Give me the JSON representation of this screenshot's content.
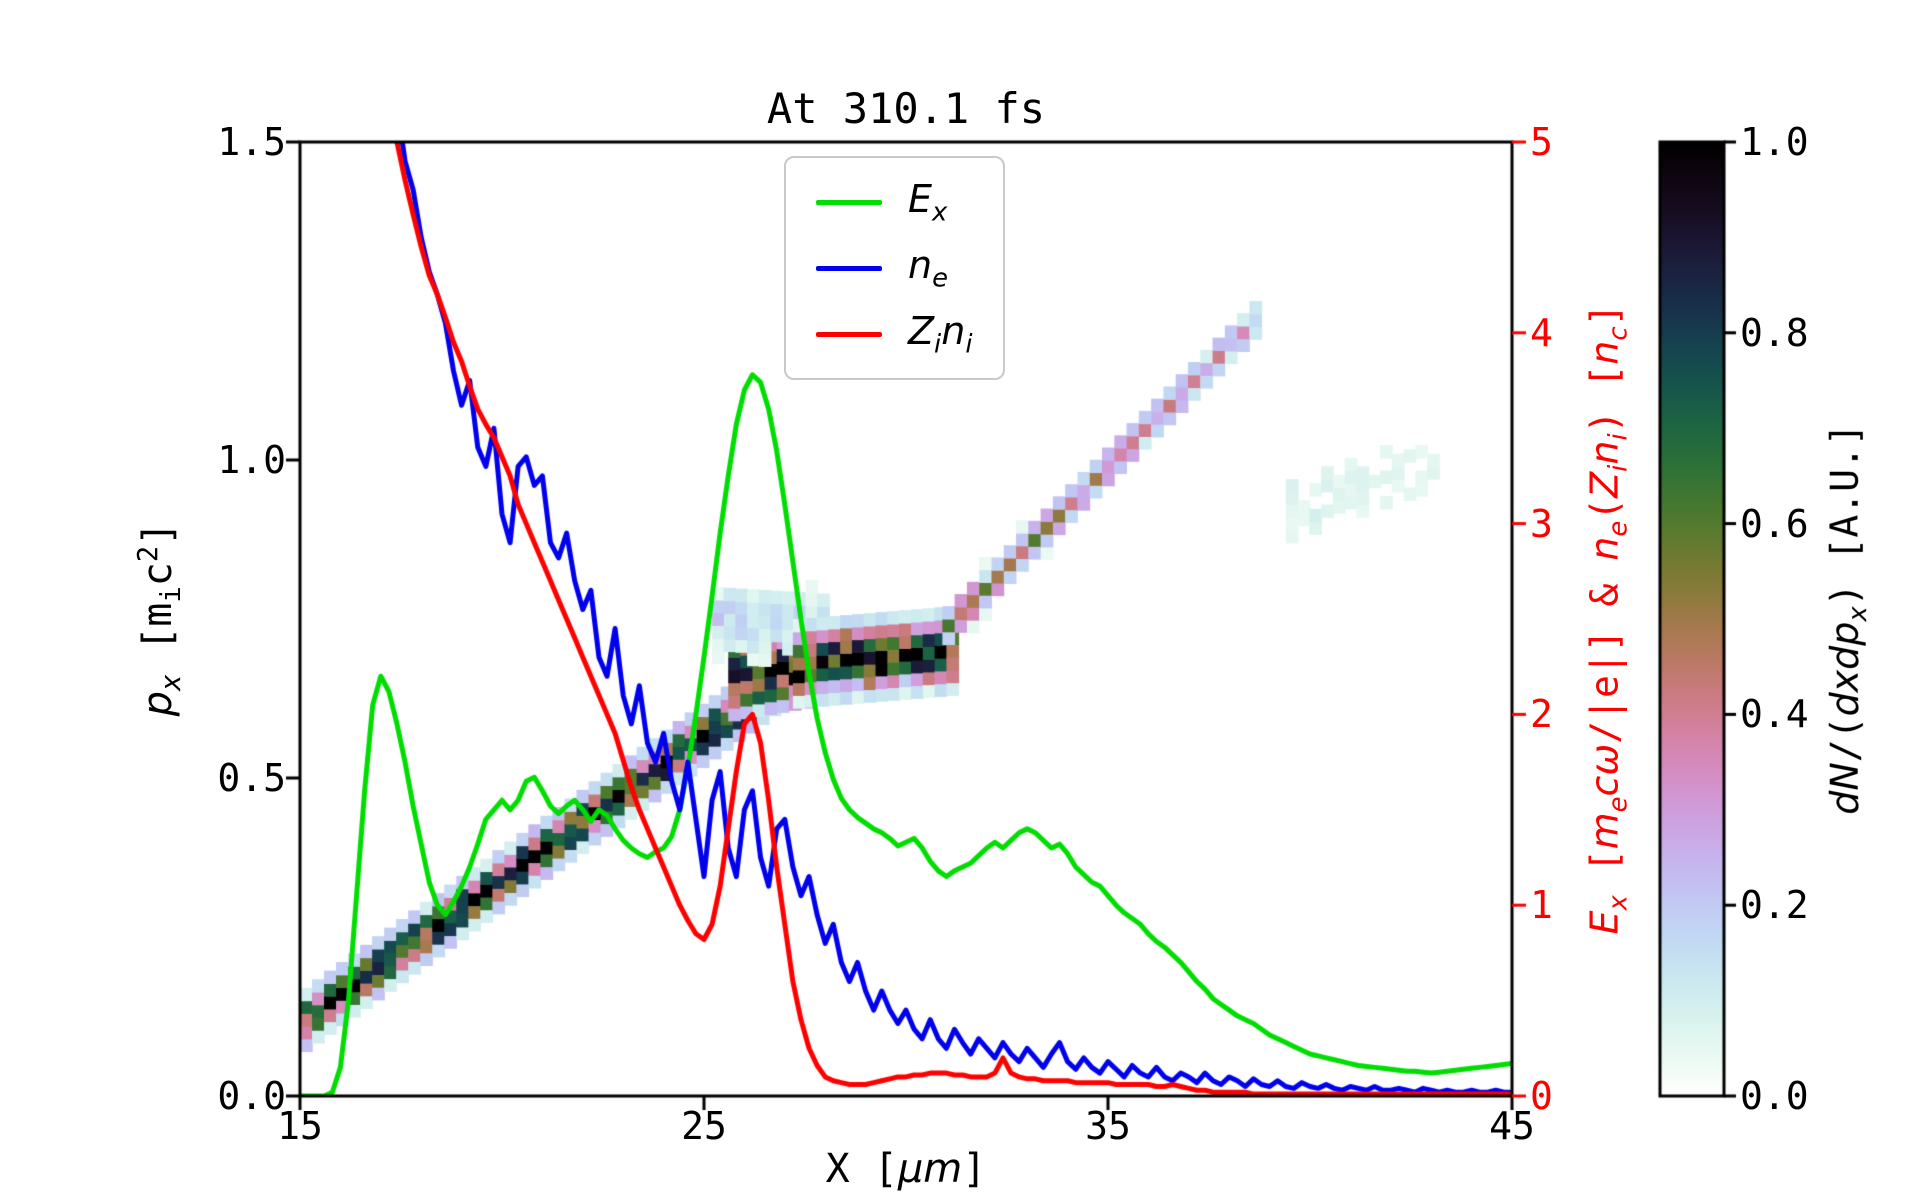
{
  "chart_data": {
    "type": "composite",
    "subtype": "phase-space hist2d with overlaid line profiles",
    "title": "At 310.1 fs",
    "xlabel_html": "X [<i>μm</i>]",
    "ylabel_left_html": "<i>p<sub>x</sub></i> [m<sub>i</sub>c<sup>2</sup>]",
    "ylabel_right_html": "<i>E<sub>x</sub></i> [<i>m<sub>e</sub>cω</i>/|e|] &amp; <i>n<sub>e</sub></i>(<i>Z<sub>i</sub>n<sub>i</sub></i>) [<i>n<sub>c</sub></i>]",
    "colorbar_label_html": "<i>dN</i>/(<i>dxdp<sub>x</sub></i>) [A.U.]",
    "xlim": [
      15,
      45
    ],
    "ylim_left": [
      0,
      1.5
    ],
    "ylim_right": [
      0,
      5
    ],
    "grid": false,
    "right_axis_color": "#ff0000",
    "x_ticks": [
      15,
      25,
      35,
      45
    ],
    "x_tick_labels": [
      "15",
      "25",
      "35",
      "45"
    ],
    "y_left_ticks": [
      0,
      0.5,
      1.0,
      1.5
    ],
    "y_left_tick_labels": [
      "0.0",
      "0.5",
      "1.0",
      "1.5"
    ],
    "y_right_ticks": [
      0,
      1,
      2,
      3,
      4,
      5
    ],
    "y_right_tick_labels": [
      "0",
      "1",
      "2",
      "3",
      "4",
      "5"
    ],
    "colorbar": {
      "cmap": "cubehelix_r",
      "range": [
        0,
        1
      ],
      "ticks": [
        0,
        0.2,
        0.4,
        0.6,
        0.8,
        1.0
      ],
      "tick_labels": [
        "0.0",
        "0.2",
        "0.4",
        "0.6",
        "0.8",
        "1.0"
      ]
    },
    "legend_position": "upper center-left inside axes",
    "series": [
      {
        "name": "Ex",
        "label_html": "<i>E<sub>x</sub></i>",
        "color": "#00dd00",
        "axis": "right",
        "x0": 15,
        "dx": 0.2,
        "values": [
          0,
          0,
          0,
          0,
          0.02,
          0.15,
          0.5,
          1.05,
          1.6,
          2.05,
          2.2,
          2.12,
          1.95,
          1.75,
          1.52,
          1.32,
          1.12,
          1.0,
          0.95,
          1.02,
          1.1,
          1.2,
          1.32,
          1.45,
          1.5,
          1.55,
          1.5,
          1.55,
          1.65,
          1.67,
          1.6,
          1.52,
          1.48,
          1.52,
          1.55,
          1.5,
          1.44,
          1.5,
          1.47,
          1.4,
          1.34,
          1.3,
          1.27,
          1.25,
          1.28,
          1.3,
          1.36,
          1.5,
          1.72,
          2.0,
          2.3,
          2.62,
          2.95,
          3.25,
          3.52,
          3.7,
          3.78,
          3.74,
          3.6,
          3.38,
          3.1,
          2.8,
          2.5,
          2.22,
          1.98,
          1.8,
          1.66,
          1.56,
          1.5,
          1.46,
          1.43,
          1.4,
          1.38,
          1.35,
          1.31,
          1.33,
          1.35,
          1.3,
          1.23,
          1.18,
          1.15,
          1.18,
          1.2,
          1.22,
          1.26,
          1.3,
          1.33,
          1.3,
          1.34,
          1.38,
          1.4,
          1.38,
          1.34,
          1.3,
          1.32,
          1.27,
          1.2,
          1.16,
          1.12,
          1.1,
          1.05,
          1.0,
          0.96,
          0.93,
          0.9,
          0.85,
          0.81,
          0.78,
          0.74,
          0.7,
          0.65,
          0.6,
          0.56,
          0.51,
          0.48,
          0.45,
          0.42,
          0.4,
          0.38,
          0.35,
          0.32,
          0.3,
          0.28,
          0.26,
          0.24,
          0.22,
          0.21,
          0.2,
          0.19,
          0.18,
          0.17,
          0.16,
          0.155,
          0.15,
          0.145,
          0.14,
          0.135,
          0.13,
          0.13,
          0.125,
          0.12,
          0.125,
          0.13,
          0.135,
          0.14,
          0.145,
          0.15,
          0.155,
          0.16,
          0.165,
          0.17
        ]
      },
      {
        "name": "ne",
        "label_html": "<i>n<sub>e</sub></i>",
        "color": "#0000ee",
        "axis": "right",
        "x0": 15,
        "dx": 0.2,
        "values": [
          null,
          null,
          null,
          null,
          null,
          null,
          null,
          null,
          null,
          null,
          null,
          null,
          5.2,
          4.9,
          4.75,
          4.5,
          4.32,
          4.2,
          4.05,
          3.8,
          3.62,
          3.75,
          3.4,
          3.3,
          3.5,
          3.05,
          2.9,
          3.3,
          3.35,
          3.2,
          3.25,
          2.9,
          2.82,
          2.95,
          2.7,
          2.55,
          2.65,
          2.3,
          2.2,
          2.45,
          2.1,
          1.95,
          2.15,
          1.85,
          1.75,
          1.9,
          1.65,
          1.5,
          1.75,
          1.45,
          1.15,
          1.55,
          1.7,
          1.3,
          1.15,
          1.5,
          1.6,
          1.25,
          1.1,
          1.4,
          1.45,
          1.2,
          1.05,
          1.15,
          0.95,
          0.8,
          0.9,
          0.7,
          0.6,
          0.7,
          0.55,
          0.45,
          0.55,
          0.45,
          0.38,
          0.45,
          0.35,
          0.3,
          0.4,
          0.3,
          0.25,
          0.35,
          0.28,
          0.22,
          0.3,
          0.25,
          0.2,
          0.28,
          0.22,
          0.18,
          0.25,
          0.2,
          0.15,
          0.22,
          0.28,
          0.18,
          0.14,
          0.2,
          0.15,
          0.12,
          0.18,
          0.14,
          0.1,
          0.16,
          0.12,
          0.1,
          0.15,
          0.1,
          0.08,
          0.12,
          0.1,
          0.07,
          0.12,
          0.08,
          0.06,
          0.1,
          0.08,
          0.05,
          0.09,
          0.06,
          0.05,
          0.08,
          0.05,
          0.04,
          0.07,
          0.05,
          0.04,
          0.06,
          0.04,
          0.03,
          0.05,
          0.04,
          0.03,
          0.05,
          0.03,
          0.03,
          0.04,
          0.03,
          0.02,
          0.04,
          0.03,
          0.02,
          0.03,
          0.02,
          0.02,
          0.03,
          0.02,
          0.02,
          0.03,
          0.02,
          0.02
        ]
      },
      {
        "name": "Zini",
        "label_html": "<i>Z<sub>i</sub>n<sub>i</sub></i>",
        "color": "#ff0000",
        "axis": "right",
        "x0": 15,
        "dx": 0.2,
        "values": [
          null,
          null,
          null,
          null,
          null,
          null,
          null,
          null,
          null,
          null,
          null,
          5.3,
          5.0,
          4.8,
          4.62,
          4.45,
          4.3,
          4.2,
          4.08,
          3.95,
          3.85,
          3.72,
          3.6,
          3.52,
          3.45,
          3.35,
          3.25,
          3.1,
          3.0,
          2.9,
          2.8,
          2.7,
          2.6,
          2.5,
          2.4,
          2.3,
          2.2,
          2.1,
          2.0,
          1.9,
          1.76,
          1.62,
          1.5,
          1.4,
          1.3,
          1.2,
          1.1,
          1.0,
          0.92,
          0.85,
          0.82,
          0.9,
          1.1,
          1.4,
          1.7,
          1.95,
          2.0,
          1.85,
          1.55,
          1.2,
          0.9,
          0.6,
          0.4,
          0.25,
          0.16,
          0.1,
          0.08,
          0.07,
          0.06,
          0.06,
          0.06,
          0.07,
          0.08,
          0.09,
          0.1,
          0.1,
          0.11,
          0.11,
          0.12,
          0.12,
          0.12,
          0.11,
          0.11,
          0.1,
          0.1,
          0.1,
          0.12,
          0.2,
          0.12,
          0.1,
          0.09,
          0.09,
          0.08,
          0.08,
          0.08,
          0.08,
          0.07,
          0.07,
          0.07,
          0.07,
          0.07,
          0.06,
          0.06,
          0.06,
          0.06,
          0.06,
          0.05,
          0.05,
          0.06,
          0.05,
          0.04,
          0.03,
          0.03,
          0.02,
          0.02,
          0.02,
          0.02,
          0.02,
          0.01,
          0.01,
          0.01,
          0.01,
          0.01,
          0.01,
          0.01,
          0.01,
          0.01,
          0.01,
          0.01,
          0.01,
          0.01,
          0.01,
          0.01,
          0.01,
          0.01,
          0.01,
          0.01,
          0.01,
          0.01,
          0.01,
          0.01,
          0.01,
          0.01,
          0.01,
          0.01,
          0.01,
          0.01,
          0.01,
          0.01,
          0.01,
          0.01
        ]
      }
    ],
    "phase_space": {
      "type": "hist2d",
      "value_label": "dN/(dxdpx) [A.U.]",
      "cell": [
        0.3,
        0.02
      ],
      "bands": [
        {
          "name": "main-accelerating-band",
          "x0": 15.0,
          "x1": 27.2,
          "p0": 0.12,
          "p1": 0.675,
          "i0": 0.85,
          "i1": 1.0,
          "sigma": 0.022
        },
        {
          "name": "dense-knot",
          "x0": 25.6,
          "x1": 27.4,
          "p0": 0.66,
          "p1": 0.68,
          "i0": 1.0,
          "i1": 1.0,
          "sigma": 0.035
        },
        {
          "name": "knot-halo",
          "x0": 25.2,
          "x1": 27.8,
          "p0": 0.75,
          "p1": 0.74,
          "i0": 0.18,
          "i1": 0.15,
          "sigma": 0.035
        },
        {
          "name": "plateau",
          "x0": 27.2,
          "x1": 31.0,
          "p0": 0.68,
          "p1": 0.7,
          "i0": 0.95,
          "i1": 0.85,
          "sigma": 0.03
        },
        {
          "name": "upper-faint-band",
          "x0": 30.9,
          "x1": 38.5,
          "p0": 0.74,
          "p1": 1.22,
          "i0": 0.5,
          "i1": 0.28,
          "sigma": 0.018
        },
        {
          "name": "faint-smudge",
          "x0": 39.4,
          "x1": 42.9,
          "p0": 0.92,
          "p1": 1.0,
          "i0": 0.08,
          "i1": 0.05,
          "sigma": 0.05
        }
      ]
    }
  },
  "layout_colors": {
    "spine": "#000000",
    "background": "#ffffff",
    "legend_edge": "#c9c9c9"
  }
}
